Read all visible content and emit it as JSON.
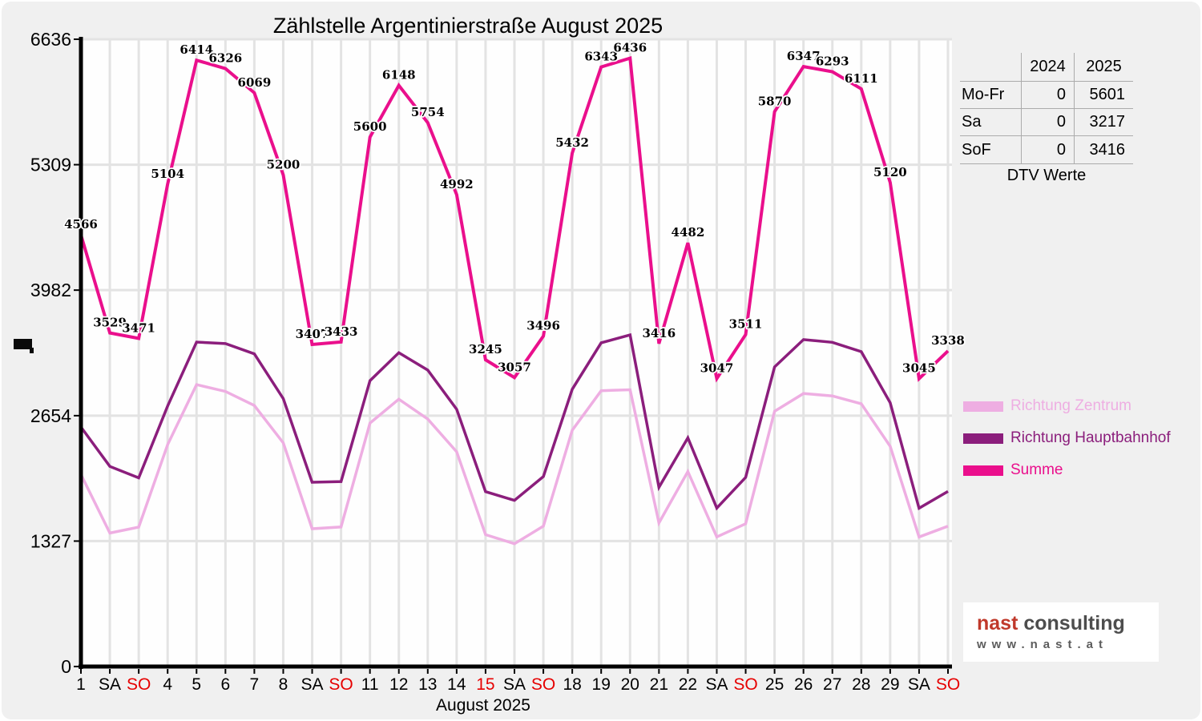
{
  "colors": {
    "page_bg": "#F0F0F0",
    "plot_bg": "#FEFEFE",
    "grid": "#E3E3E3",
    "axis": "#000000",
    "tick_label": "#000000",
    "holiday_red": "#E60000",
    "table_border": "#ABABAB",
    "zentrum": "#EEAEE2",
    "hauptbahnhof": "#8B1E7C",
    "summe": "#EA0F8C",
    "logo_red": "#C0392B",
    "logo_gray": "#4D4D4D"
  },
  "chart_data": {
    "type": "line",
    "title": "Zählstelle Argentinierstraße August 2025",
    "xlabel": "August 2025",
    "ylabel": "",
    "ylim": [
      0,
      6636
    ],
    "yticks": [
      0,
      1327,
      2654,
      3982,
      5309,
      6636
    ],
    "grid": true,
    "legend_position": "right",
    "x_tick_labels": [
      "1",
      "SA",
      "SO",
      "4",
      "5",
      "6",
      "7",
      "8",
      "SA",
      "SO",
      "11",
      "12",
      "13",
      "14",
      "15",
      "SA",
      "SO",
      "18",
      "19",
      "20",
      "21",
      "22",
      "SA",
      "SO",
      "25",
      "26",
      "27",
      "28",
      "29",
      "SA",
      "SO"
    ],
    "x_tick_red": [
      false,
      false,
      true,
      false,
      false,
      false,
      false,
      false,
      false,
      true,
      false,
      false,
      false,
      false,
      true,
      false,
      true,
      false,
      false,
      false,
      false,
      false,
      false,
      true,
      false,
      false,
      false,
      false,
      false,
      false,
      true
    ],
    "series": [
      {
        "name": "Richtung Zentrum",
        "color": "#EEAEE2",
        "data_labels": false,
        "values": [
          2032,
          1412,
          1475,
          2348,
          2982,
          2910,
          2761,
          2366,
          1458,
          1476,
          2576,
          2828,
          2618,
          2271,
          1395,
          1299,
          1486,
          2499,
          2918,
          2928,
          1520,
          2062,
          1371,
          1510,
          2700,
          2888,
          2863,
          2780,
          2330,
          1370,
          1485
        ]
      },
      {
        "name": "Richtung Hauptbahnhof",
        "color": "#8B1E7C",
        "data_labels": false,
        "values": [
          2534,
          2117,
          1996,
          2756,
          3432,
          3416,
          3308,
          2834,
          1949,
          1957,
          3024,
          3320,
          3136,
          2721,
          1850,
          1758,
          2010,
          2933,
          3425,
          3508,
          1896,
          2420,
          1676,
          2001,
          3170,
          3459,
          3430,
          3331,
          2790,
          1675,
          1853
        ]
      },
      {
        "name": "Summe",
        "color": "#EA0F8C",
        "data_labels": true,
        "values": [
          4566,
          3529,
          3471,
          5104,
          6414,
          6326,
          6069,
          5200,
          3407,
          3433,
          5600,
          6148,
          5754,
          4992,
          3245,
          3057,
          3496,
          5432,
          6343,
          6436,
          3416,
          4482,
          3047,
          3511,
          5870,
          6347,
          6293,
          6111,
          5120,
          3045,
          3338
        ]
      }
    ]
  },
  "table": {
    "header": {
      "y2024": "2024",
      "y2025": "2025"
    },
    "rows": [
      {
        "label": "Mo-Fr",
        "v2024": "0",
        "v2025": "5601"
      },
      {
        "label": "Sa",
        "v2024": "0",
        "v2025": "3217"
      },
      {
        "label": "SoF",
        "v2024": "0",
        "v2025": "3416"
      }
    ],
    "caption": "DTV Werte"
  },
  "legend": {
    "items": [
      {
        "label": "Richtung Zentrum",
        "color": "#EEAEE2"
      },
      {
        "label": "Richtung Hauptbahnhof",
        "color": "#8B1E7C"
      },
      {
        "label": "Summe",
        "color": "#EA0F8C"
      }
    ]
  },
  "logo": {
    "brand_primary": "nast",
    "brand_secondary": " consulting",
    "url_text": "www.nast.at"
  }
}
